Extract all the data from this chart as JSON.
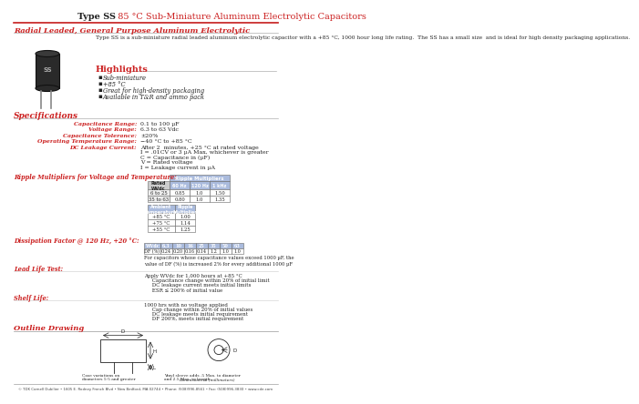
{
  "title_bold": "Type SS",
  "title_rest": "  85 °C Sub-Miniature Aluminum Electrolytic Capacitors",
  "subtitle": "Radial Leaded, General Purpose Aluminum Electrolytic",
  "description": "Type SS is a sub-miniature radial leaded aluminum electrolytic capacitor with a +85 °C, 1000 hour long life rating.  The SS has a small size  and is ideal for high density packaging applications.",
  "highlights_title": "Highlights",
  "highlights": [
    "Sub-miniature",
    "+85 °C",
    "Great for high-density packaging",
    "Available in T&R and ammo pack"
  ],
  "specs_title": "Specifications",
  "specs": [
    [
      "Capacitance Range:",
      "0.1 to 100 µF"
    ],
    [
      "Voltage Range:",
      "6.3 to 63 Vdc"
    ],
    [
      "Capacitance Tolerance:",
      "±20%"
    ],
    [
      "Operating Temperature Range:",
      "−40 °C to +85 °C"
    ],
    [
      "DC Leakage Current:",
      "After 2  minutes, +25 °C at rated voltage\nI = .01CV or 3 µA Max, whichever is greater\nC = Capacitance in (µF)\nV = Rated voltage\nI = Leakage current in µA"
    ]
  ],
  "ripple_title": "Ripple Multipliers for Voltage and Temperature:",
  "ripple_table1_data": [
    [
      "6 to 25",
      "0.85",
      "1.0",
      "1.50"
    ],
    [
      "35 to 63",
      "0.80",
      "1.0",
      "1.35"
    ]
  ],
  "ripple_table2_data": [
    [
      "+85 °C",
      "1.00"
    ],
    [
      "+75 °C",
      "1.14"
    ],
    [
      "+55 °C",
      "1.25"
    ]
  ],
  "dissipation_title": "Dissipation Factor @ 120 Hz, +20 °C:",
  "dissipation_headers": [
    "WVdc",
    "6.3",
    "10",
    "16",
    "25",
    "35",
    "50",
    "63"
  ],
  "dissipation_data": [
    "DF (%)",
    "0.24",
    "0.20",
    "0.16",
    "0.14",
    "1.2",
    "1.0",
    "1.0"
  ],
  "dissipation_note": "For capacitors whose capacitance values exceed 1000 µF, the\nvalue of DF (%) is increased 2% for every additional 1000 µF",
  "lead_life_title": "Lead Life Test:",
  "lead_life_text": "Apply WVdc for 1,000 hours at +85 °C\n     Capacitance change within 20% of initial limit\n     DC leakage current meets initial limits\n     ESR ≤ 200% of initial value",
  "shelf_life_title": "Shelf Life:",
  "shelf_life_text": "1000 hrs with no voltage applied\n     Cap change within 20% of initial values\n     DC leakage meets initial requirement\n     DF 200%, meets initial requirement",
  "outline_title": "Outline Drawing",
  "outline_note1": "Case variations on\ndiameters 5-5 and greater",
  "outline_note2": "Vinyl sleeve adds .5 Max. to diameter\nand 2.5 Max. to length.",
  "outline_dim": "Dimensions in (millimeters)",
  "footer": "© TDK Cornell Dubilier • 1605 E. Rodney French Blvd • New Bedford, MA 02744 • Phone: (508)996-8561 • Fax: (508)996-3830 • www.cde.com",
  "red": "#CC2222",
  "dark": "#222222",
  "blue_hdr": "#4477AA",
  "light_blue": "#AABBDD",
  "table_gray": "#BBBBBB"
}
